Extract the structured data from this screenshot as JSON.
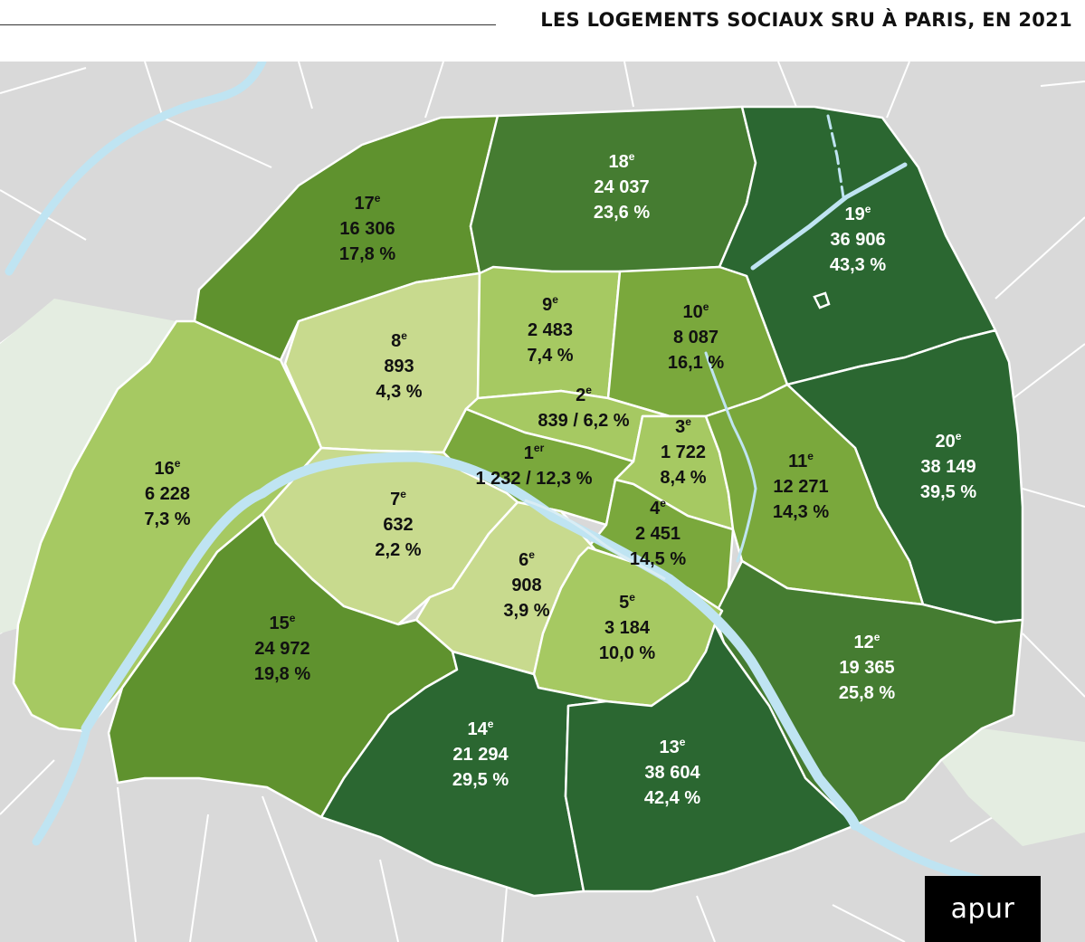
{
  "title": "LES LOGEMENTS SOCIAUX SRU À PARIS, EN 2021",
  "logo": "apur",
  "colors": {
    "background_land": "#d9d9d9",
    "park": "#e4ede1",
    "seine": "#bfe4f2",
    "class_1": "#c8da8e",
    "class_2": "#a6c962",
    "class_3": "#7aa83c",
    "class_4": "#5f922e",
    "class_5": "#457c31",
    "class_6": "#2b6731"
  },
  "arrondissements": [
    {
      "num": "1",
      "suffix": "er",
      "count": "1 232",
      "pct": "12,3 %",
      "class": "class_3"
    },
    {
      "num": "2",
      "suffix": "e",
      "count": "839",
      "pct": "6,2 %",
      "class": "class_2"
    },
    {
      "num": "3",
      "suffix": "e",
      "count": "1 722",
      "pct": "8,4 %",
      "class": "class_2"
    },
    {
      "num": "4",
      "suffix": "e",
      "count": "2 451",
      "pct": "14,5 %",
      "class": "class_3"
    },
    {
      "num": "5",
      "suffix": "e",
      "count": "3 184",
      "pct": "10,0 %",
      "class": "class_2"
    },
    {
      "num": "6",
      "suffix": "e",
      "count": "908",
      "pct": "3,9 %",
      "class": "class_1"
    },
    {
      "num": "7",
      "suffix": "e",
      "count": "632",
      "pct": "2,2 %",
      "class": "class_1"
    },
    {
      "num": "8",
      "suffix": "e",
      "count": "893",
      "pct": "4,3 %",
      "class": "class_1"
    },
    {
      "num": "9",
      "suffix": "e",
      "count": "2 483",
      "pct": "7,4 %",
      "class": "class_2"
    },
    {
      "num": "10",
      "suffix": "e",
      "count": "8 087",
      "pct": "16,1 %",
      "class": "class_3"
    },
    {
      "num": "11",
      "suffix": "e",
      "count": "12 271",
      "pct": "14,3 %",
      "class": "class_3"
    },
    {
      "num": "12",
      "suffix": "e",
      "count": "19 365",
      "pct": "25,8 %",
      "class": "class_5"
    },
    {
      "num": "13",
      "suffix": "e",
      "count": "38 604",
      "pct": "42,4 %",
      "class": "class_6"
    },
    {
      "num": "14",
      "suffix": "e",
      "count": "21 294",
      "pct": "29,5 %",
      "class": "class_6"
    },
    {
      "num": "15",
      "suffix": "e",
      "count": "24 972",
      "pct": "19,8 %",
      "class": "class_4"
    },
    {
      "num": "16",
      "suffix": "e",
      "count": "6 228",
      "pct": "7,3 %",
      "class": "class_2"
    },
    {
      "num": "17",
      "suffix": "e",
      "count": "16 306",
      "pct": "17,8 %",
      "class": "class_4"
    },
    {
      "num": "18",
      "suffix": "e",
      "count": "24 037",
      "pct": "23,6 %",
      "class": "class_5"
    },
    {
      "num": "19",
      "suffix": "e",
      "count": "36 906",
      "pct": "43,3 %",
      "class": "class_6"
    },
    {
      "num": "20",
      "suffix": "e",
      "count": "38 149",
      "pct": "39,5 %",
      "class": "class_6"
    }
  ]
}
